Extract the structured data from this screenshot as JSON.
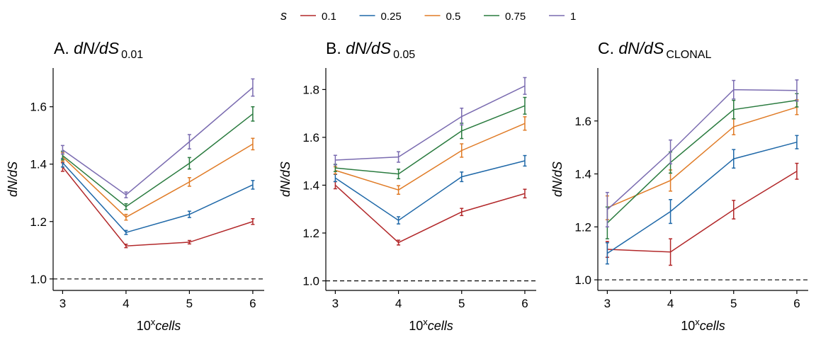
{
  "legend": {
    "title": "s",
    "position": "top",
    "entries": [
      {
        "label": "0.1",
        "color": "#B2282A"
      },
      {
        "label": "0.25",
        "color": "#1F68A8"
      },
      {
        "label": "0.5",
        "color": "#E07B26"
      },
      {
        "label": "0.75",
        "color": "#2A7B3F"
      },
      {
        "label": "1",
        "color": "#7A6BB0"
      }
    ]
  },
  "reference_line": {
    "y": 1.0,
    "style": "dashed"
  },
  "chart_data": [
    {
      "type": "line",
      "title": {
        "prefix": "A. ",
        "main": "dN/dS",
        "sub": "0.01"
      },
      "xlabel": {
        "base": "10",
        "sup": "x",
        "rest": "cells"
      },
      "ylabel": "dN/dS",
      "x": [
        3,
        4,
        5,
        6
      ],
      "xticks": [
        "3",
        "4",
        "5",
        "6"
      ],
      "xlim": [
        2.85,
        6.18
      ],
      "ylim": [
        0.96,
        1.735
      ],
      "yticks": [
        "1.0",
        "1.2",
        "1.4",
        "1.6"
      ],
      "ytick_values": [
        1.0,
        1.2,
        1.4,
        1.6
      ],
      "grid": false,
      "series": [
        {
          "name": "0.1",
          "values": [
            1.39,
            1.115,
            1.128,
            1.2
          ],
          "errors": [
            0.015,
            0.006,
            0.006,
            0.01
          ]
        },
        {
          "name": "0.25",
          "values": [
            1.405,
            1.162,
            1.225,
            1.328
          ],
          "errors": [
            0.015,
            0.007,
            0.011,
            0.015
          ]
        },
        {
          "name": "0.5",
          "values": [
            1.425,
            1.215,
            1.338,
            1.47
          ],
          "errors": [
            0.015,
            0.01,
            0.015,
            0.02
          ]
        },
        {
          "name": "0.75",
          "values": [
            1.43,
            1.252,
            1.403,
            1.575
          ],
          "errors": [
            0.015,
            0.01,
            0.02,
            0.025
          ]
        },
        {
          "name": "1",
          "values": [
            1.45,
            1.293,
            1.478,
            1.667
          ],
          "errors": [
            0.015,
            0.01,
            0.025,
            0.03
          ]
        }
      ]
    },
    {
      "type": "line",
      "title": {
        "prefix": "B. ",
        "main": "dN/dS",
        "sub": "0.05"
      },
      "xlabel": {
        "base": "10",
        "sup": "x",
        "rest": "cells"
      },
      "ylabel": "dN/dS",
      "x": [
        3,
        4,
        5,
        6
      ],
      "xticks": [
        "3",
        "4",
        "5",
        "6"
      ],
      "xlim": [
        2.85,
        6.18
      ],
      "ylim": [
        0.96,
        1.89
      ],
      "yticks": [
        "1.0",
        "1.2",
        "1.4",
        "1.6",
        "1.8"
      ],
      "ytick_values": [
        1.0,
        1.2,
        1.4,
        1.6,
        1.8
      ],
      "grid": false,
      "series": [
        {
          "name": "0.1",
          "values": [
            1.4,
            1.16,
            1.288,
            1.365
          ],
          "errors": [
            0.015,
            0.01,
            0.015,
            0.018
          ]
        },
        {
          "name": "0.25",
          "values": [
            1.43,
            1.253,
            1.435,
            1.502
          ],
          "errors": [
            0.015,
            0.015,
            0.02,
            0.022
          ]
        },
        {
          "name": "0.5",
          "values": [
            1.462,
            1.38,
            1.545,
            1.658
          ],
          "errors": [
            0.015,
            0.018,
            0.028,
            0.028
          ]
        },
        {
          "name": "0.75",
          "values": [
            1.472,
            1.447,
            1.627,
            1.732
          ],
          "errors": [
            0.015,
            0.02,
            0.032,
            0.035
          ]
        },
        {
          "name": "1",
          "values": [
            1.505,
            1.518,
            1.687,
            1.815
          ],
          "errors": [
            0.02,
            0.022,
            0.035,
            0.035
          ]
        }
      ]
    },
    {
      "type": "line",
      "title": {
        "prefix": "C. ",
        "main": "dN/dS",
        "sub": "CLONAL"
      },
      "xlabel": {
        "base": "10",
        "sup": "x",
        "rest": "cells"
      },
      "ylabel": "dN/dS",
      "x": [
        3,
        4,
        5,
        6
      ],
      "xticks": [
        "3",
        "4",
        "5",
        "6"
      ],
      "xlim": [
        2.85,
        6.18
      ],
      "ylim": [
        0.96,
        1.8
      ],
      "yticks": [
        "1.0",
        "1.2",
        "1.4",
        "1.6"
      ],
      "ytick_values": [
        1.0,
        1.2,
        1.4,
        1.6
      ],
      "grid": false,
      "series": [
        {
          "name": "0.1",
          "values": [
            1.115,
            1.105,
            1.265,
            1.41
          ],
          "errors": [
            0.03,
            0.05,
            0.035,
            0.03
          ]
        },
        {
          "name": "0.25",
          "values": [
            1.1,
            1.258,
            1.457,
            1.52
          ],
          "errors": [
            0.04,
            0.045,
            0.035,
            0.025
          ]
        },
        {
          "name": "0.5",
          "values": [
            1.272,
            1.375,
            1.578,
            1.652
          ],
          "errors": [
            0.045,
            0.04,
            0.03,
            0.028
          ]
        },
        {
          "name": "0.75",
          "values": [
            1.215,
            1.443,
            1.643,
            1.678
          ],
          "errors": [
            0.06,
            0.04,
            0.035,
            0.025
          ]
        },
        {
          "name": "1",
          "values": [
            1.265,
            1.483,
            1.718,
            1.715
          ],
          "errors": [
            0.065,
            0.045,
            0.035,
            0.04
          ]
        }
      ]
    }
  ]
}
